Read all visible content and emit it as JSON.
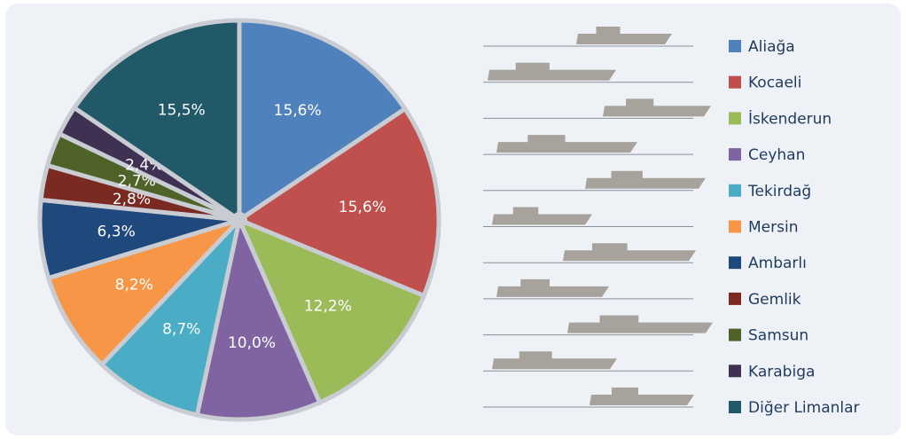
{
  "chart_data": {
    "type": "pie",
    "categories": [
      "Aliağa",
      "Kocaeli",
      "İskenderun",
      "Ceyhan",
      "Tekirdağ",
      "Mersin",
      "Ambarlı",
      "Gemlik",
      "Samsun",
      "Karabiga",
      "Diğer Limanlar"
    ],
    "values": [
      15.6,
      15.6,
      12.2,
      10.0,
      8.7,
      8.2,
      6.3,
      2.8,
      2.7,
      2.4,
      15.5
    ],
    "value_labels": [
      "15,6%",
      "15,6%",
      "12,2%",
      "10,0%",
      "8,7%",
      "8,2%",
      "6,3%",
      "2,8%",
      "2,7%",
      "2,4%",
      "15,5%"
    ],
    "colors": [
      "#4f81bd",
      "#c0504d",
      "#9bbb59",
      "#8064a2",
      "#4bacc6",
      "#f79646",
      "#1f497d",
      "#7b2a22",
      "#4f6228",
      "#3f3151",
      "#215968"
    ]
  }
}
